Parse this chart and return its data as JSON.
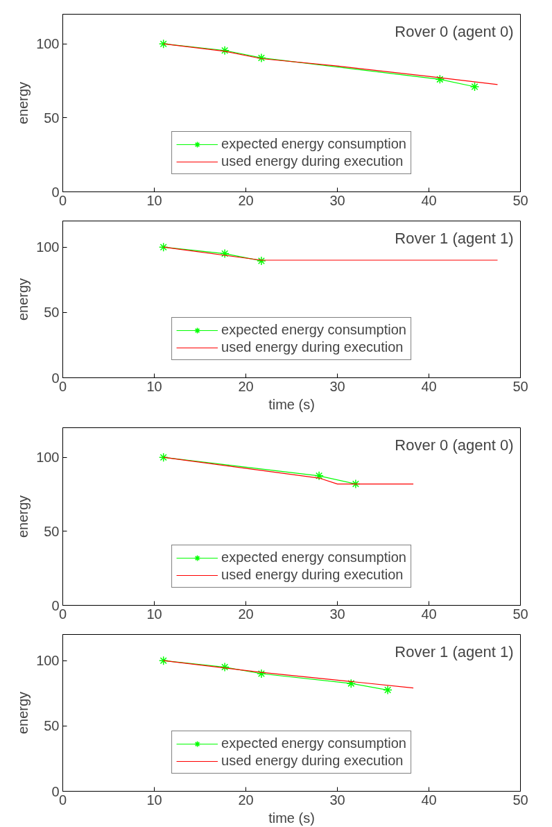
{
  "chart_data": [
    {
      "type": "line",
      "title": "Rover 0 (agent 0)",
      "ylabel": "energy",
      "xlim": [
        0,
        50
      ],
      "ylim": [
        0,
        120
      ],
      "xticks": [
        0,
        10,
        20,
        30,
        40,
        50
      ],
      "yticks": [
        0,
        50,
        100
      ],
      "grid": false,
      "legend": "bottom",
      "series": [
        {
          "name": "expected energy consumption",
          "color": "#00ff00",
          "marker": "cross",
          "x": [
            11,
            17.7,
            21.7,
            41.2,
            45
          ],
          "values": [
            100,
            95.5,
            90.5,
            76,
            71
          ]
        },
        {
          "name": "used energy during execution",
          "color": "#ff0000",
          "marker": "none",
          "x": [
            11,
            17.7,
            21.7,
            30,
            40,
            47.5
          ],
          "values": [
            100,
            95,
            90,
            85,
            78,
            72.5
          ]
        }
      ]
    },
    {
      "type": "line",
      "title": "Rover 1 (agent 1)",
      "xlabel": "time (s)",
      "ylabel": "energy",
      "xlim": [
        0,
        50
      ],
      "ylim": [
        0,
        120
      ],
      "xticks": [
        0,
        10,
        20,
        30,
        40,
        50
      ],
      "yticks": [
        0,
        50,
        100
      ],
      "grid": false,
      "legend": "bottom",
      "series": [
        {
          "name": "expected energy consumption",
          "color": "#00ff00",
          "marker": "cross",
          "x": [
            11,
            17.7,
            21.7
          ],
          "values": [
            100,
            95,
            89.5
          ]
        },
        {
          "name": "used energy during execution",
          "color": "#ff0000",
          "marker": "none",
          "x": [
            11,
            21.7,
            47.5
          ],
          "values": [
            100,
            90,
            90
          ]
        }
      ]
    },
    {
      "type": "line",
      "title": "Rover 0 (agent 0)",
      "ylabel": "energy",
      "xlim": [
        0,
        50
      ],
      "ylim": [
        0,
        120
      ],
      "xticks": [
        0,
        10,
        20,
        30,
        40,
        50
      ],
      "yticks": [
        0,
        50,
        100
      ],
      "grid": false,
      "legend": "bottom",
      "series": [
        {
          "name": "expected energy consumption",
          "color": "#00ff00",
          "marker": "cross",
          "x": [
            11,
            28,
            32
          ],
          "values": [
            100,
            87.5,
            82
          ]
        },
        {
          "name": "used energy during execution",
          "color": "#ff0000",
          "marker": "none",
          "x": [
            11,
            28,
            30,
            38.3
          ],
          "values": [
            100,
            86,
            82,
            82
          ]
        }
      ]
    },
    {
      "type": "line",
      "title": "Rover 1 (agent 1)",
      "xlabel": "time (s)",
      "ylabel": "energy",
      "xlim": [
        0,
        50
      ],
      "ylim": [
        0,
        120
      ],
      "xticks": [
        0,
        10,
        20,
        30,
        40,
        50
      ],
      "yticks": [
        0,
        50,
        100
      ],
      "grid": false,
      "legend": "bottom",
      "series": [
        {
          "name": "expected energy consumption",
          "color": "#00ff00",
          "marker": "cross",
          "x": [
            11,
            17.7,
            21.7,
            31.5,
            35.5
          ],
          "values": [
            100,
            95,
            90,
            82.5,
            77.5
          ]
        },
        {
          "name": "used energy during execution",
          "color": "#ff0000",
          "marker": "none",
          "x": [
            11,
            21.7,
            31.5,
            38.3
          ],
          "values": [
            100,
            91,
            84,
            79
          ]
        }
      ]
    }
  ]
}
